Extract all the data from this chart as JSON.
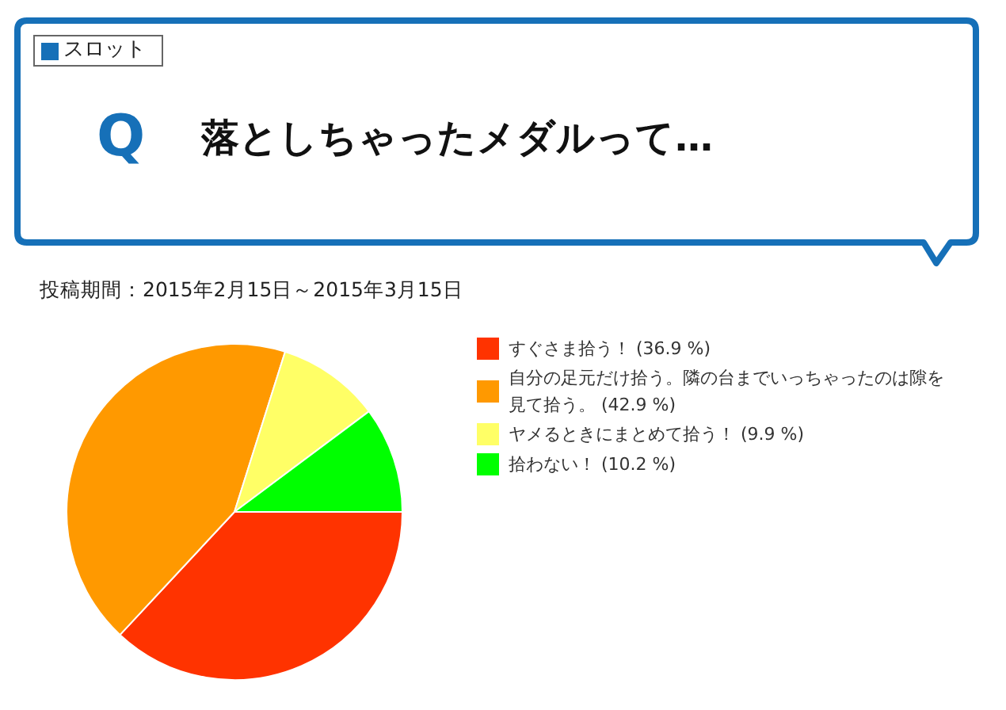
{
  "chart_data": {
    "type": "pie",
    "title": "落としちゃったメダルって…",
    "subtitle": "投稿期間：2015年2月15日～2015年3月15日",
    "annotations": [
      "スロット",
      "Q"
    ],
    "categories": [
      "すぐさま拾う！",
      "自分の足元だけ拾う。隣の台までいっちゃったのは隙を見て拾う。",
      "ヤメるときにまとめて拾う！",
      "拾わない！"
    ],
    "values": [
      36.9,
      42.9,
      9.9,
      10.2
    ],
    "colors": [
      "#ff3300",
      "#ff9900",
      "#ffff66",
      "#00ff00"
    ],
    "value_labels": [
      "(36.9 %)",
      "(42.9 %)",
      "(9.9 %)",
      "(10.2 %)"
    ],
    "legend": "right"
  }
}
